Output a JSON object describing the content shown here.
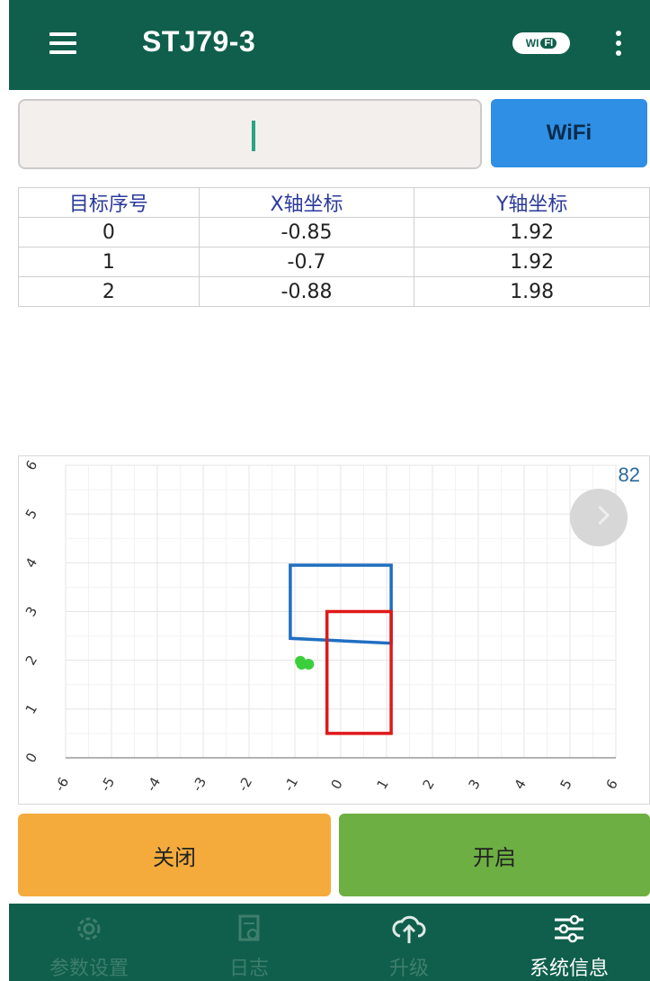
{
  "app_bar": {
    "title": "STJ79-3",
    "wifi_icon_text": "WI",
    "wifi_icon_badge": "FI"
  },
  "connection": {
    "input_value": "",
    "wifi_button_label": "WiFi"
  },
  "targets_table": {
    "headers": [
      "目标序号",
      "X轴坐标",
      "Y轴坐标"
    ],
    "rows": [
      [
        "0",
        "-0.85",
        "1.92"
      ],
      [
        "1",
        "-0.7",
        "1.92"
      ],
      [
        "2",
        "-0.88",
        "1.98"
      ]
    ]
  },
  "chart_data": {
    "type": "scatter",
    "title": "",
    "xlabel": "",
    "ylabel": "",
    "xlim": [
      -6,
      6
    ],
    "ylim": [
      0,
      6
    ],
    "x_ticks": [
      "-6",
      "-5",
      "-4",
      "-3",
      "-2",
      "-1",
      "0",
      "1",
      "2",
      "3",
      "4",
      "5",
      "6"
    ],
    "y_ticks": [
      "0",
      "1",
      "2",
      "3",
      "4",
      "5",
      "6"
    ],
    "grid": true,
    "counter": "82",
    "points": [
      {
        "x": -0.85,
        "y": 1.92
      },
      {
        "x": -0.7,
        "y": 1.92
      },
      {
        "x": -0.88,
        "y": 1.98
      }
    ],
    "point_color": "#3ccf3c",
    "regions": [
      {
        "color": "#1f6fc2",
        "corners": [
          [
            -1.1,
            3.95
          ],
          [
            1.1,
            3.95
          ],
          [
            1.1,
            2.35
          ],
          [
            -1.1,
            2.45
          ]
        ]
      },
      {
        "color": "#e01818",
        "corners": [
          [
            -0.3,
            3.0
          ],
          [
            1.1,
            3.0
          ],
          [
            1.1,
            0.5
          ],
          [
            -0.3,
            0.5
          ]
        ]
      }
    ]
  },
  "actions": {
    "close_label": "关闭",
    "open_label": "开启"
  },
  "bottom_nav": {
    "items": [
      {
        "label": "参数设置",
        "icon": "gear-icon"
      },
      {
        "label": "日志",
        "icon": "log-icon"
      },
      {
        "label": "升级",
        "icon": "cloud-upload-icon"
      },
      {
        "label": "系统信息",
        "icon": "sliders-icon"
      }
    ],
    "active_index": 3
  },
  "colors": {
    "primary": "#0f5f4c",
    "wifi_button": "#2e8fe4",
    "close_button": "#f4ab3c",
    "open_button": "#6daf43"
  }
}
